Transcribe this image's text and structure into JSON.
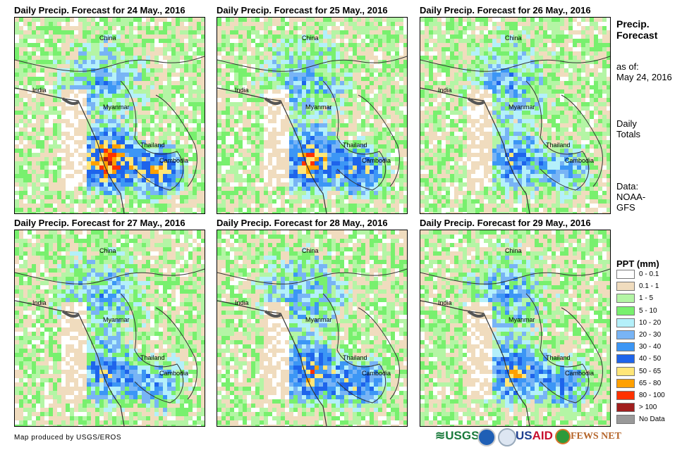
{
  "panels": [
    {
      "title": "Daily Precip. Forecast for 24 May., 2016",
      "intensity": 1.0
    },
    {
      "title": "Daily Precip. Forecast for 25 May., 2016",
      "intensity": 0.85
    },
    {
      "title": "Daily Precip. Forecast for 26 May., 2016",
      "intensity": 0.55
    },
    {
      "title": "Daily Precip. Forecast for 27 May., 2016",
      "intensity": 0.6
    },
    {
      "title": "Daily Precip. Forecast for 28 May., 2016",
      "intensity": 0.75
    },
    {
      "title": "Daily Precip. Forecast for 29 May., 2016",
      "intensity": 0.7
    }
  ],
  "map_labels": {
    "china": "China",
    "india": "India",
    "myanmar": "Myanmar",
    "thailand": "Thailand",
    "cambodia": "Cambodia"
  },
  "side": {
    "title1": "Precip.",
    "title2": "Forecast",
    "asof1": "as of:",
    "asof2": "May 24, 2016",
    "daily1": "Daily",
    "daily2": "Totals",
    "data1": "Data:",
    "data2": "NOAA-",
    "data3": "GFS"
  },
  "legend": {
    "title": "PPT (mm)",
    "items": [
      {
        "label": "0 - 0.1",
        "color": "#ffffff"
      },
      {
        "label": "0.1 - 1",
        "color": "#f0dcbe"
      },
      {
        "label": "1 - 5",
        "color": "#b4f5a5"
      },
      {
        "label": "5 - 10",
        "color": "#78f06e"
      },
      {
        "label": "10 - 20",
        "color": "#b4f0fa"
      },
      {
        "label": "20 - 30",
        "color": "#78b4f5"
      },
      {
        "label": "30 - 40",
        "color": "#3c96f5"
      },
      {
        "label": "40 - 50",
        "color": "#1e64eb"
      },
      {
        "label": "50 - 65",
        "color": "#ffe678"
      },
      {
        "label": "65 - 80",
        "color": "#ffa000"
      },
      {
        "label": "80 - 100",
        "color": "#ff3200"
      },
      {
        "label": "> 100",
        "color": "#a01e1e"
      },
      {
        "label": "No Data",
        "color": "#999999"
      }
    ]
  },
  "credit": "Map produced by USGS/EROS",
  "logos": [
    "USGS",
    "NOAA",
    "USAID",
    "FEWS NET"
  ]
}
